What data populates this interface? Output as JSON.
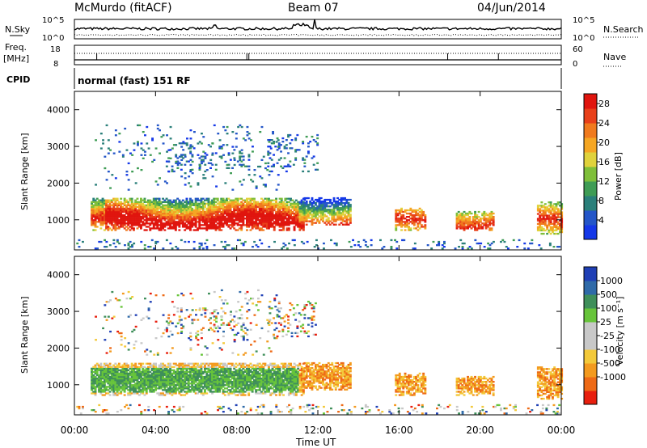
{
  "header": {
    "station": "McMurdo (fitACF)",
    "beam": "Beam 07",
    "date": "04/Jun/2014"
  },
  "noise_panel": {
    "left_label": "N.Sky",
    "right_label": "N.Search",
    "left_ticks": [
      "10^5",
      "10^0"
    ],
    "right_ticks": [
      "10^5",
      "10^0"
    ]
  },
  "freq_panel": {
    "left_label_top": "Freq.",
    "left_label_unit": "[MHz]",
    "right_label": "Nave",
    "left_ticks": [
      "18",
      "8"
    ],
    "right_ticks": [
      "60",
      "0"
    ]
  },
  "cpid": {
    "label": "CPID",
    "text": "normal (fast) 151 RF"
  },
  "chart_data": [
    {
      "type": "heatmap",
      "title": "",
      "ylabel": "Slant Range [km]",
      "xlabel": "Time UT",
      "xlim": [
        0,
        24
      ],
      "ylim": [
        180,
        4500
      ],
      "y_ticks": [
        1000,
        2000,
        3000,
        4000
      ],
      "colorbar": {
        "label": "Power [dB]",
        "range": [
          0,
          30
        ],
        "ticks": [
          "4",
          "8",
          "12",
          "16",
          "20",
          "24",
          "28"
        ],
        "tick_values": [
          4,
          8,
          12,
          16,
          20,
          24,
          28
        ],
        "colors": [
          "#1538e8",
          "#2456c8",
          "#2a7f7a",
          "#3f9c55",
          "#7fbf3a",
          "#e0d23c",
          "#f5a623",
          "#f07a1e",
          "#e8401a",
          "#e0150e"
        ]
      }
    },
    {
      "type": "heatmap",
      "title": "",
      "ylabel": "Slant Range [km]",
      "xlabel": "Time UT",
      "xlim": [
        0,
        24
      ],
      "ylim": [
        180,
        4500
      ],
      "y_ticks": [
        1000,
        2000,
        3000,
        4000
      ],
      "colorbar": {
        "label": "Velocity [m s⁻¹]",
        "ticks": [
          "1000",
          "500",
          "100",
          "25",
          "-25",
          "-100",
          "-500",
          "-1000"
        ],
        "colors": [
          "#1f3fb5",
          "#2f6aa8",
          "#3f8f5a",
          "#67c43a",
          "#c8c8c8",
          "#c8c8c8",
          "#f3c93a",
          "#f39a1e",
          "#ee6a16",
          "#e81f0e"
        ]
      }
    }
  ],
  "x_axis": {
    "label": "Time UT",
    "ticks": [
      "00:00",
      "04:00",
      "08:00",
      "12:00",
      "16:00",
      "20:00",
      "00:00"
    ],
    "tick_hours": [
      0,
      4,
      8,
      12,
      16,
      20,
      24
    ]
  }
}
